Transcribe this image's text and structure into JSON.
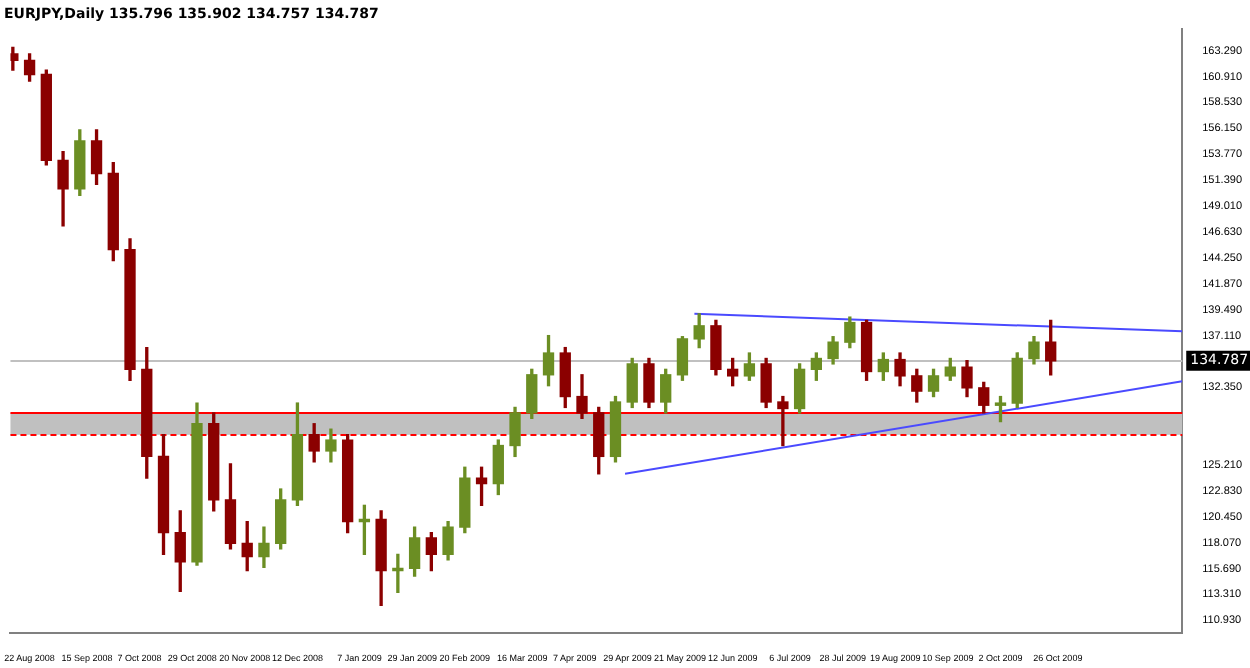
{
  "chart_data": {
    "type": "candlestick",
    "title": "EURJPY,Daily 135.796 135.902 134.757 134.787",
    "x": [
      "2008-08-15",
      "2008-08-22",
      "2008-08-29",
      "2008-09-05",
      "2008-09-12",
      "2008-09-19",
      "2008-09-26",
      "2008-10-03",
      "2008-10-10",
      "2008-10-17",
      "2008-10-24",
      "2008-10-31",
      "2008-11-07",
      "2008-11-14",
      "2008-11-21",
      "2008-11-28",
      "2008-12-05",
      "2008-12-12",
      "2008-12-19",
      "2008-12-26",
      "2009-01-02",
      "2009-01-09",
      "2009-01-16",
      "2009-01-23",
      "2009-01-30",
      "2009-02-06",
      "2009-02-13",
      "2009-02-20",
      "2009-02-27",
      "2009-03-06",
      "2009-03-13",
      "2009-03-20",
      "2009-03-27",
      "2009-04-03",
      "2009-04-10",
      "2009-04-17",
      "2009-04-24",
      "2009-05-01",
      "2009-05-08",
      "2009-05-15",
      "2009-05-22",
      "2009-05-29",
      "2009-06-05",
      "2009-06-12",
      "2009-06-19",
      "2009-06-26",
      "2009-07-03",
      "2009-07-10",
      "2009-07-17",
      "2009-07-24",
      "2009-07-31",
      "2009-08-07",
      "2009-08-14",
      "2009-08-21",
      "2009-08-28",
      "2009-09-04",
      "2009-09-11",
      "2009-09-18",
      "2009-09-25",
      "2009-10-02",
      "2009-10-09",
      "2009-10-16",
      "2009-10-23"
    ],
    "ohlc": [
      [
        163.0,
        163.6,
        161.5,
        162.4
      ],
      [
        162.4,
        163.0,
        160.5,
        161.1
      ],
      [
        161.1,
        161.5,
        152.8,
        153.2
      ],
      [
        153.2,
        154.0,
        147.2,
        150.6
      ],
      [
        150.6,
        156.0,
        150.0,
        155.0
      ],
      [
        155.0,
        156.0,
        151.0,
        152.0
      ],
      [
        152.0,
        153.0,
        144.0,
        145.0
      ],
      [
        145.0,
        146.0,
        133.0,
        134.0
      ],
      [
        134.0,
        136.0,
        124.0,
        126.0
      ],
      [
        126.0,
        128.0,
        117.0,
        119.0
      ],
      [
        119.0,
        121.0,
        113.6,
        116.3
      ],
      [
        116.3,
        130.9,
        116.0,
        129.0
      ],
      [
        129.0,
        130.0,
        121.0,
        122.0
      ],
      [
        122.0,
        125.3,
        117.5,
        118.0
      ],
      [
        118.0,
        120.0,
        115.5,
        116.8
      ],
      [
        116.8,
        119.5,
        115.8,
        118.0
      ],
      [
        118.0,
        123.0,
        117.5,
        122.0
      ],
      [
        122.0,
        130.9,
        121.5,
        128.0
      ],
      [
        128.0,
        129.0,
        125.5,
        126.5
      ],
      [
        126.5,
        128.5,
        125.5,
        127.5
      ],
      [
        127.5,
        128.0,
        119.0,
        120.0
      ],
      [
        120.0,
        121.5,
        117.0,
        120.2
      ],
      [
        120.2,
        121.0,
        112.3,
        115.5
      ],
      [
        115.5,
        117.0,
        113.5,
        115.7
      ],
      [
        115.7,
        119.5,
        115.0,
        118.5
      ],
      [
        118.5,
        119.0,
        115.5,
        117.0
      ],
      [
        117.0,
        120.0,
        116.5,
        119.5
      ],
      [
        119.5,
        125.0,
        119.0,
        124.0
      ],
      [
        124.0,
        125.0,
        121.5,
        123.5
      ],
      [
        123.5,
        127.5,
        122.5,
        127.0
      ],
      [
        127.0,
        130.5,
        126.0,
        130.0
      ],
      [
        130.0,
        134.0,
        129.5,
        133.5
      ],
      [
        133.5,
        137.1,
        132.5,
        135.5
      ],
      [
        135.5,
        136.0,
        130.5,
        131.5
      ],
      [
        131.5,
        133.5,
        129.5,
        130.0
      ],
      [
        130.0,
        130.5,
        124.4,
        126.0
      ],
      [
        126.0,
        131.5,
        125.5,
        131.0
      ],
      [
        131.0,
        135.0,
        130.5,
        134.5
      ],
      [
        134.5,
        135.0,
        130.5,
        131.0
      ],
      [
        131.0,
        134.0,
        130.0,
        133.5
      ],
      [
        133.5,
        137.0,
        133.0,
        136.8
      ],
      [
        136.8,
        139.1,
        136.0,
        138.0
      ],
      [
        138.0,
        138.5,
        133.5,
        134.0
      ],
      [
        134.0,
        135.0,
        132.5,
        133.4
      ],
      [
        133.4,
        135.5,
        133.0,
        134.5
      ],
      [
        134.5,
        135.0,
        130.5,
        131.0
      ],
      [
        131.0,
        131.5,
        127.0,
        130.4
      ],
      [
        130.4,
        134.5,
        130.0,
        134.0
      ],
      [
        134.0,
        135.5,
        133.0,
        135.0
      ],
      [
        135.0,
        137.0,
        134.5,
        136.5
      ],
      [
        136.5,
        138.8,
        136.0,
        138.3
      ],
      [
        138.3,
        138.5,
        133.0,
        133.8
      ],
      [
        133.8,
        135.5,
        133.0,
        134.9
      ],
      [
        134.9,
        135.5,
        132.5,
        133.4
      ],
      [
        133.4,
        134.0,
        131.0,
        132.0
      ],
      [
        132.0,
        134.0,
        131.5,
        133.4
      ],
      [
        133.4,
        135.0,
        133.0,
        134.2
      ],
      [
        134.2,
        134.8,
        131.5,
        132.3
      ],
      [
        132.3,
        132.8,
        130.0,
        130.7
      ],
      [
        130.7,
        131.5,
        129.2,
        130.9
      ],
      [
        130.9,
        135.5,
        130.5,
        135.0
      ],
      [
        135.0,
        137.0,
        134.5,
        136.5
      ],
      [
        136.5,
        138.5,
        133.5,
        134.787
      ]
    ],
    "colors": [
      "#8b0000",
      "#8b0000",
      "#8b0000",
      "#8b0000",
      "#6b8e23",
      "#8b0000",
      "#8b0000",
      "#8b0000",
      "#8b0000",
      "#8b0000",
      "#8b0000",
      "#6b8e23",
      "#8b0000",
      "#8b0000",
      "#8b0000",
      "#6b8e23",
      "#6b8e23",
      "#6b8e23",
      "#8b0000",
      "#6b8e23",
      "#8b0000",
      "#6b8e23",
      "#8b0000",
      "#6b8e23",
      "#6b8e23",
      "#8b0000",
      "#6b8e23",
      "#6b8e23",
      "#8b0000",
      "#6b8e23",
      "#6b8e23",
      "#6b8e23",
      "#6b8e23",
      "#8b0000",
      "#8b0000",
      "#8b0000",
      "#6b8e23",
      "#6b8e23",
      "#8b0000",
      "#6b8e23",
      "#6b8e23",
      "#6b8e23",
      "#8b0000",
      "#8b0000",
      "#6b8e23",
      "#8b0000",
      "#8b0000",
      "#6b8e23",
      "#6b8e23",
      "#6b8e23",
      "#6b8e23",
      "#8b0000",
      "#6b8e23",
      "#8b0000",
      "#8b0000",
      "#6b8e23",
      "#6b8e23",
      "#8b0000",
      "#8b0000",
      "#6b8e23",
      "#6b8e23",
      "#6b8e23",
      "#8b0000"
    ],
    "series": [
      {
        "type": "line",
        "color": "#4a4aff",
        "x": [
          "2009-05-27",
          "2009-12-17"
        ],
        "values": [
          139.1,
          137.5
        ]
      },
      {
        "type": "line",
        "color": "#4a4aff",
        "x": [
          "2009-04-28",
          "2009-12-17"
        ],
        "values": [
          124.4,
          132.9
        ]
      }
    ],
    "bands": [
      {
        "axis": "y",
        "from": 128.0,
        "to": 130.0,
        "color": "#c0c0c0"
      }
    ],
    "ref_lines": [
      {
        "axis": "y",
        "value": 130.0,
        "color": "#ff0000"
      },
      {
        "axis": "y",
        "value": 128.0,
        "color": "#ff0000",
        "line_style": "dashed"
      },
      {
        "axis": "y",
        "value": 134.787,
        "label": "134.787",
        "color": "#c0c0c0"
      }
    ],
    "xlim": [
      "2008-08-14",
      "2009-12-17"
    ],
    "xticks": [
      {
        "value": "2008-08-22",
        "label": "22 Aug 2008"
      },
      {
        "value": "2008-09-15",
        "label": "15 Sep 2008"
      },
      {
        "value": "2008-10-07",
        "label": "7 Oct 2008"
      },
      {
        "value": "2008-10-29",
        "label": "29 Oct 2008"
      },
      {
        "value": "2008-11-20",
        "label": "20 Nov 2008"
      },
      {
        "value": "2008-12-12",
        "label": "12 Dec 2008"
      },
      {
        "value": "2009-01-07",
        "label": "7 Jan 2009"
      },
      {
        "value": "2009-01-29",
        "label": "29 Jan 2009"
      },
      {
        "value": "2009-02-20",
        "label": "20 Feb 2009"
      },
      {
        "value": "2009-03-16",
        "label": "16 Mar 2009"
      },
      {
        "value": "2009-04-07",
        "label": "7 Apr 2009"
      },
      {
        "value": "2009-04-29",
        "label": "29 Apr 2009"
      },
      {
        "value": "2009-05-21",
        "label": "21 May 2009"
      },
      {
        "value": "2009-06-12",
        "label": "12 Jun 2009"
      },
      {
        "value": "2009-07-06",
        "label": "6 Jul 2009"
      },
      {
        "value": "2009-07-28",
        "label": "28 Jul 2009"
      },
      {
        "value": "2009-08-19",
        "label": "19 Aug 2009"
      },
      {
        "value": "2009-09-10",
        "label": "10 Sep 2009"
      },
      {
        "value": "2009-10-02",
        "label": "2 Oct 2009"
      },
      {
        "value": "2009-10-26",
        "label": "26 Oct 2009"
      }
    ],
    "ylim": [
      109.75,
      165.3
    ],
    "yticks": [
      {
        "value": 110.93,
        "label": "110.930"
      },
      {
        "value": 113.31,
        "label": "113.310"
      },
      {
        "value": 115.69,
        "label": "115.690"
      },
      {
        "value": 118.07,
        "label": "118.070"
      },
      {
        "value": 120.45,
        "label": "120.450"
      },
      {
        "value": 122.83,
        "label": "122.830"
      },
      {
        "value": 125.21,
        "label": "125.210"
      },
      {
        "value": 132.35,
        "label": "132.350"
      },
      {
        "value": 137.11,
        "label": "137.110"
      },
      {
        "value": 139.49,
        "label": "139.490"
      },
      {
        "value": 141.87,
        "label": "141.870"
      },
      {
        "value": 144.25,
        "label": "144.250"
      },
      {
        "value": 146.63,
        "label": "146.630"
      },
      {
        "value": 149.01,
        "label": "149.010"
      },
      {
        "value": 151.39,
        "label": "151.390"
      },
      {
        "value": 153.77,
        "label": "153.770"
      },
      {
        "value": 156.15,
        "label": "156.150"
      },
      {
        "value": 158.53,
        "label": "158.530"
      },
      {
        "value": 160.91,
        "label": "160.910"
      },
      {
        "value": 163.29,
        "label": "163.290"
      }
    ],
    "grid": false,
    "legend": false
  }
}
